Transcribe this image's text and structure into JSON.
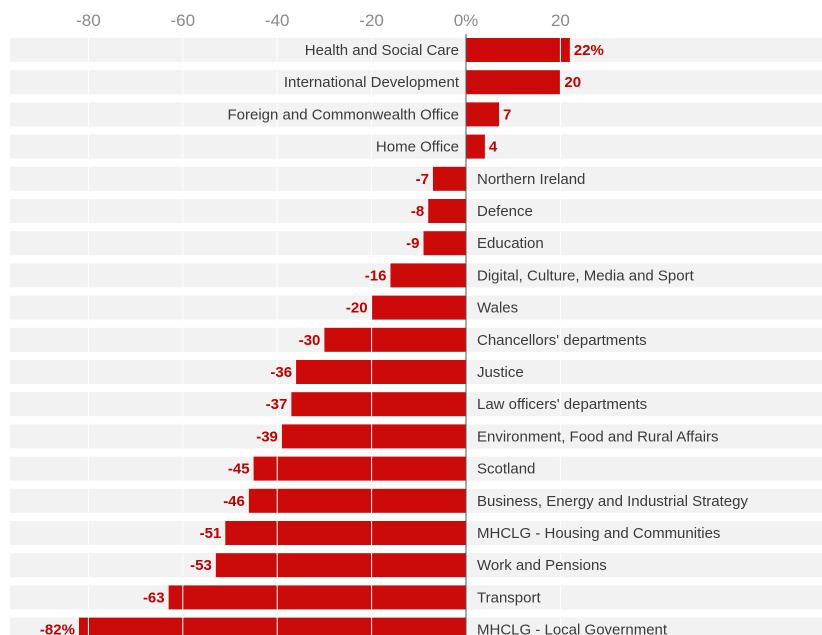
{
  "chart_data": {
    "type": "bar",
    "orientation": "horizontal",
    "value_unit": "%",
    "xlim": [
      -82,
      30
    ],
    "x_ticks": [
      {
        "value": -80,
        "label": "-80"
      },
      {
        "value": -60,
        "label": "-60"
      },
      {
        "value": -40,
        "label": "-40"
      },
      {
        "value": -20,
        "label": "-20"
      },
      {
        "value": 0,
        "label": "0%"
      },
      {
        "value": 20,
        "label": "20"
      }
    ],
    "categories": [
      "Health and Social Care",
      "International Development",
      "Foreign and Commonwealth Office",
      "Home Office",
      "Northern Ireland",
      "Defence",
      "Education",
      "Digital, Culture, Media and Sport",
      "Wales",
      "Chancellors' departments",
      "Justice",
      "Law officers' departments",
      "Environment, Food and Rural Affairs",
      "Scotland",
      "Business, Energy and Industrial Strategy",
      "MHCLG - Housing and Communities",
      "Work and Pensions",
      "Transport",
      "MHCLG - Local Government"
    ],
    "values": [
      22,
      20,
      7,
      4,
      -7,
      -8,
      -9,
      -16,
      -20,
      -30,
      -36,
      -37,
      -39,
      -45,
      -46,
      -51,
      -53,
      -63,
      -82
    ],
    "value_labels": [
      "22%",
      "20",
      "7",
      "4",
      "-7",
      "-8",
      "-9",
      "-16",
      "-20",
      "-30",
      "-36",
      "-37",
      "-39",
      "-45",
      "-46",
      "-51",
      "-53",
      "-63",
      "-82%"
    ],
    "colors": {
      "bar": "#cc0a0a",
      "label": "#c00000",
      "row_background": "#f2f2f2",
      "tick": "#8a8a8a",
      "category": "#3a3a3a"
    },
    "grid": true
  }
}
